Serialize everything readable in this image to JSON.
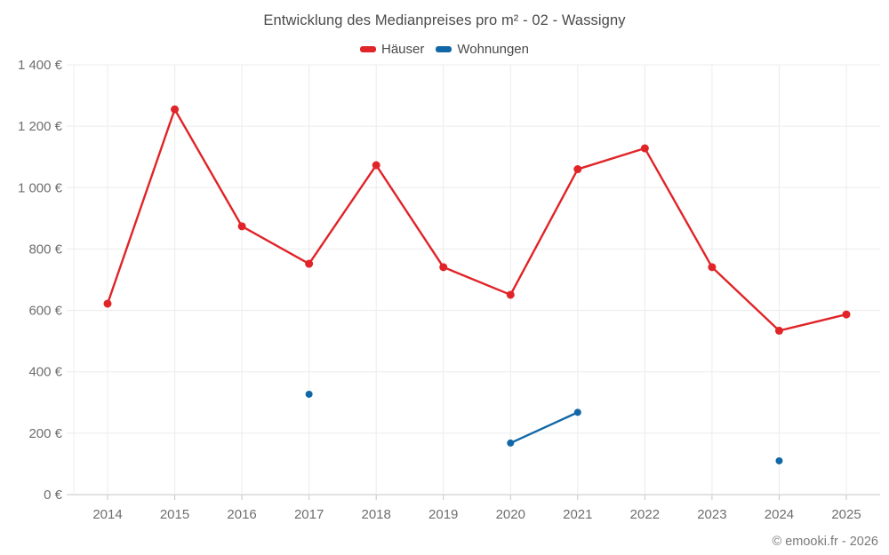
{
  "chart_data": {
    "type": "line",
    "title": "Entwicklung des Medianpreises pro m² - 02 - Wassigny",
    "categories": [
      "2014",
      "2015",
      "2016",
      "2017",
      "2018",
      "2019",
      "2020",
      "2021",
      "2022",
      "2023",
      "2024",
      "2025"
    ],
    "series": [
      {
        "name": "Häuser",
        "slug": "haeuser",
        "color": "#e02428",
        "values": [
          622,
          1255,
          874,
          752,
          1073,
          741,
          651,
          1060,
          1128,
          741,
          534,
          587
        ]
      },
      {
        "name": "Wohnungen",
        "slug": "wohnungen",
        "color": "#1268a7",
        "values": [
          null,
          null,
          null,
          327,
          null,
          null,
          168,
          268,
          null,
          null,
          110,
          null
        ]
      }
    ],
    "ylim": [
      0,
      1400
    ],
    "ytick_step": 200,
    "ytick_labels": [
      "0 €",
      "200 €",
      "400 €",
      "600 €",
      "800 €",
      "1 000 €",
      "1 200 €",
      "1 400 €"
    ],
    "xlabel": "",
    "ylabel": "",
    "grid": true,
    "legend_position": "top",
    "footer": "© emooki.fr - 2026"
  },
  "colors": {
    "grid": "#ececec",
    "axis": "#c6c6c6",
    "title_text": "#4a4a4a",
    "tick_text": "#6e6e6e",
    "footer_text": "#7a7a7a"
  }
}
